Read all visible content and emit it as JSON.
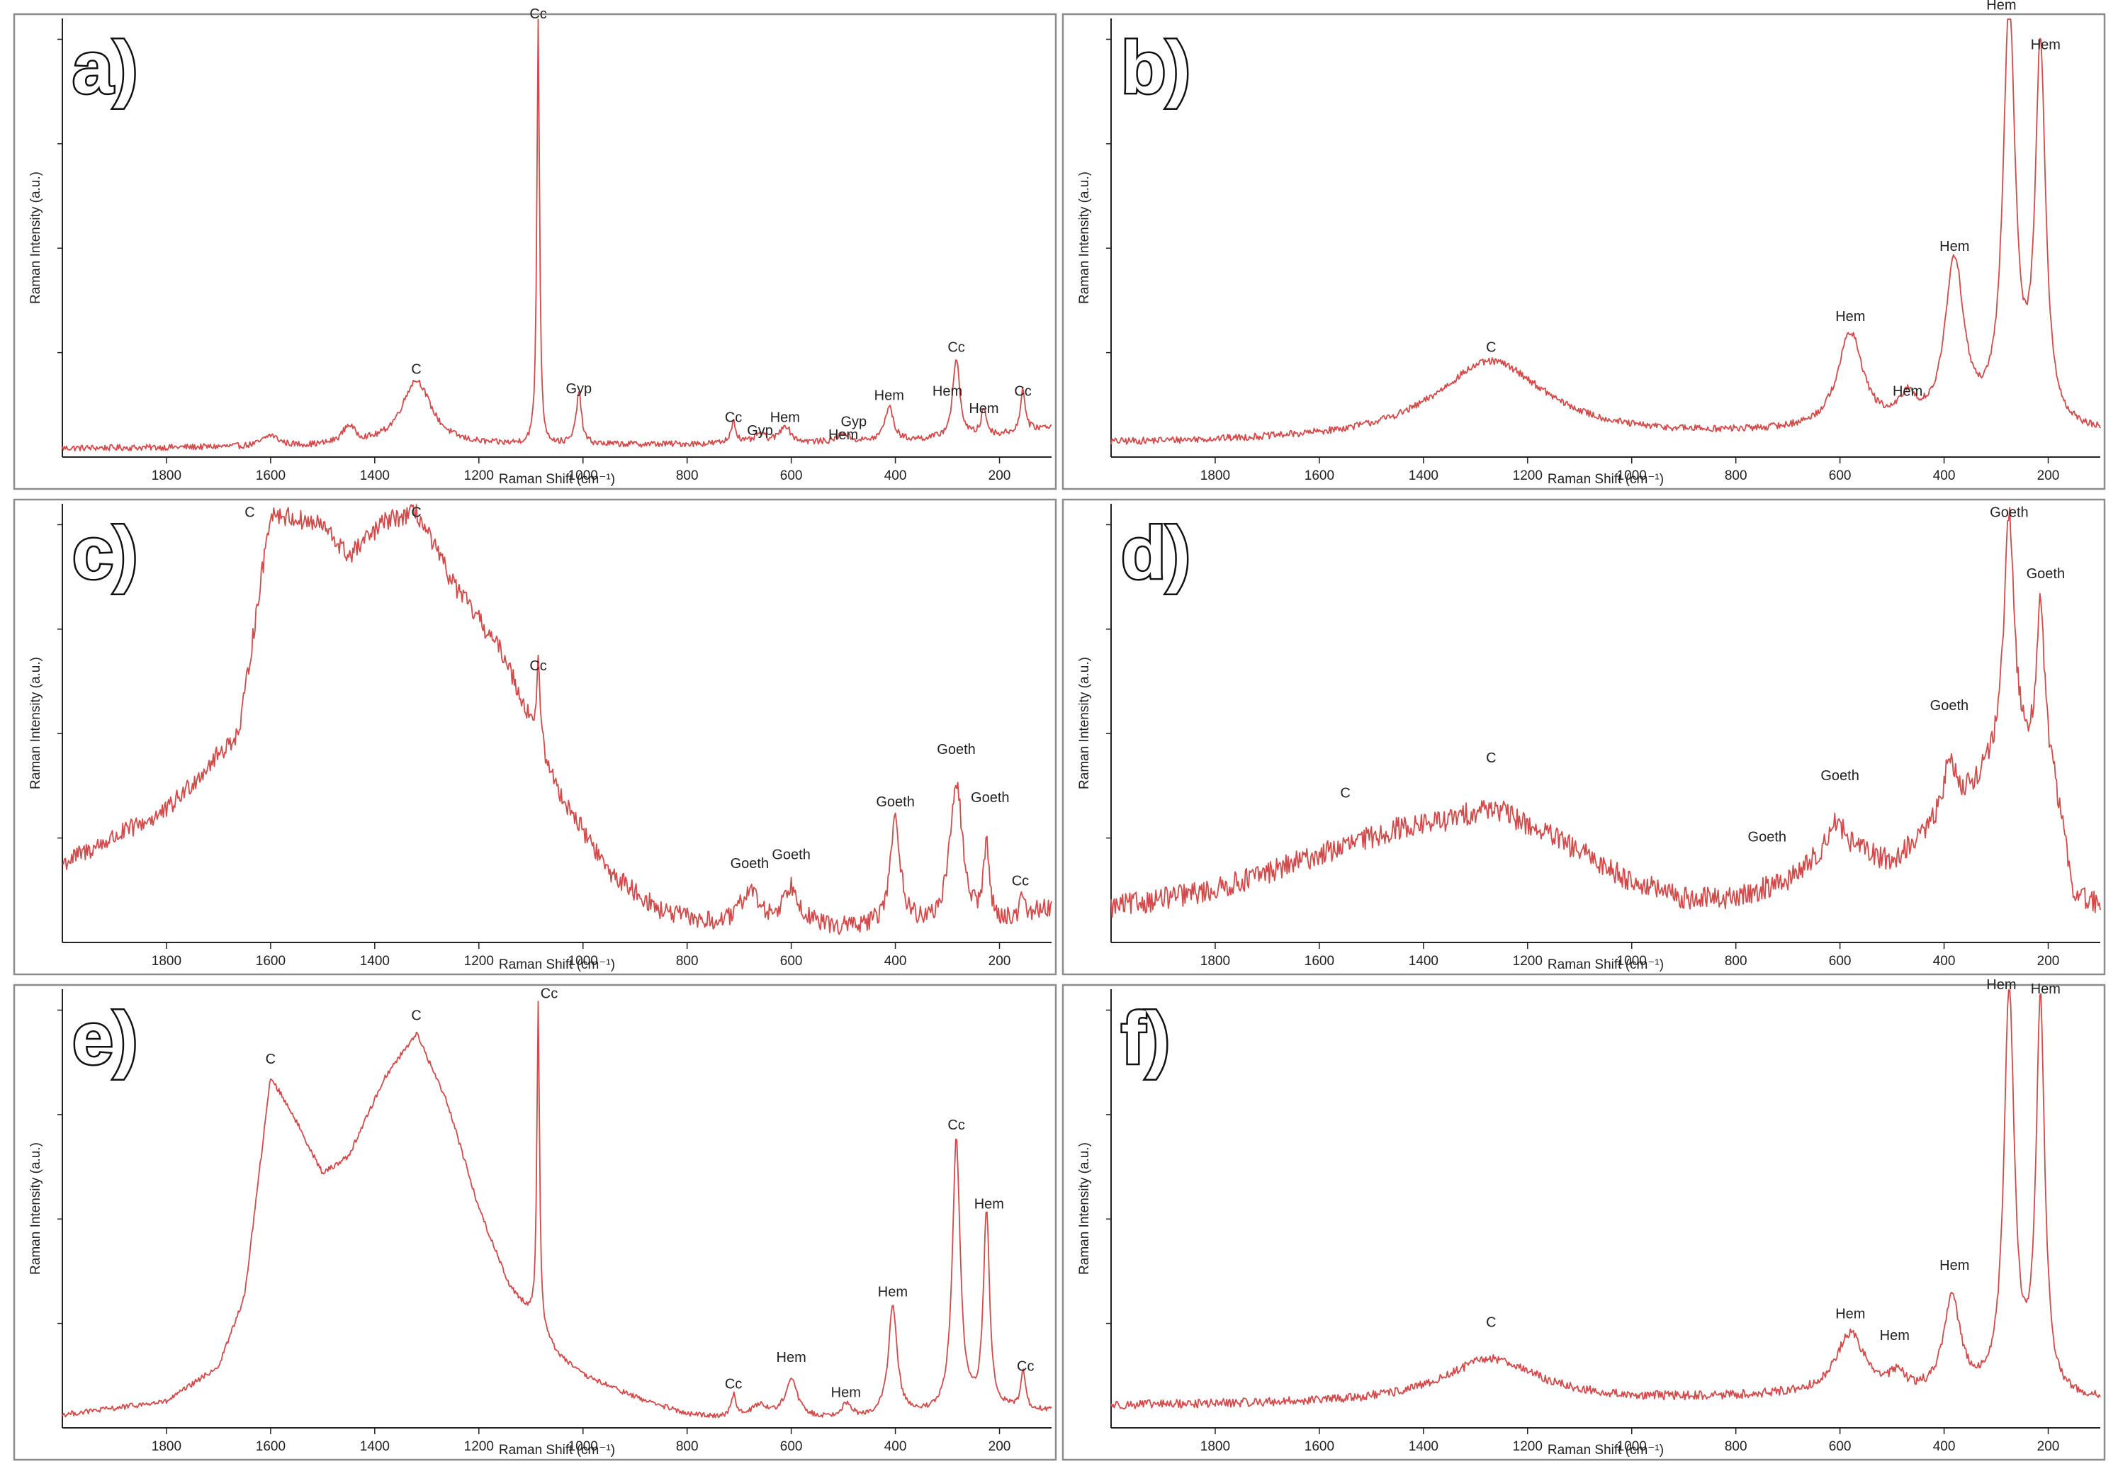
{
  "figure": {
    "spectrum_color": "#d24a4a",
    "axis_color": "#222222",
    "frame_color": "#8c8c8c"
  },
  "chart_data": [
    {
      "type": "line",
      "panel_label": "a)",
      "xlabel": "Raman Shift (cm⁻¹)",
      "ylabel": "Raman Intensity (a.u.)",
      "xlim": [
        2000,
        100
      ],
      "x_reversed": true,
      "ylim": [
        0,
        100
      ],
      "xticks": [
        1800,
        1600,
        1400,
        1200,
        1000,
        800,
        600,
        400,
        200
      ],
      "noise": 0.7,
      "baseline": [
        [
          2000,
          2
        ],
        [
          1200,
          2.5
        ],
        [
          700,
          3
        ],
        [
          400,
          3.5
        ],
        [
          200,
          5
        ],
        [
          100,
          7
        ]
      ],
      "peaks": [
        {
          "x": 1600,
          "h": 2.5,
          "w": 18
        },
        {
          "x": 1450,
          "h": 4,
          "w": 15
        },
        {
          "x": 1320,
          "h": 15,
          "w": 35
        },
        {
          "x": 1086,
          "h": 98,
          "w": 3
        },
        {
          "x": 1008,
          "h": 12,
          "w": 6
        },
        {
          "x": 711,
          "h": 5,
          "w": 6
        },
        {
          "x": 660,
          "h": 2,
          "w": 12
        },
        {
          "x": 612,
          "h": 4,
          "w": 12
        },
        {
          "x": 500,
          "h": 2,
          "w": 12
        },
        {
          "x": 412,
          "h": 8,
          "w": 10
        },
        {
          "x": 283,
          "h": 18,
          "w": 8
        },
        {
          "x": 230,
          "h": 6,
          "w": 6
        },
        {
          "x": 155,
          "h": 10,
          "w": 5
        }
      ],
      "annotations": [
        {
          "text": "Cc",
          "x": 1086,
          "y": 100
        },
        {
          "text": "C",
          "x": 1320,
          "y": 19
        },
        {
          "text": "Gyp",
          "x": 1008,
          "y": 14.5
        },
        {
          "text": "Cc",
          "x": 711,
          "y": 8
        },
        {
          "text": "Gyp",
          "x": 660,
          "y": 5
        },
        {
          "text": "Hem",
          "x": 612,
          "y": 8
        },
        {
          "text": "Hem",
          "x": 500,
          "y": 4
        },
        {
          "text": "Gyp",
          "x": 480,
          "y": 7
        },
        {
          "text": "Hem",
          "x": 412,
          "y": 13
        },
        {
          "text": "Hem",
          "x": 300,
          "y": 14
        },
        {
          "text": "Cc",
          "x": 283,
          "y": 24
        },
        {
          "text": "Hem",
          "x": 230,
          "y": 10
        },
        {
          "text": "Cc",
          "x": 155,
          "y": 14
        }
      ]
    },
    {
      "type": "line",
      "panel_label": "b)",
      "xlabel": "Raman Shift (cm⁻¹)",
      "ylabel": "Raman Intensity (a.u.)",
      "xlim": [
        2000,
        100
      ],
      "x_reversed": true,
      "ylim": [
        0,
        100
      ],
      "xticks": [
        1800,
        1600,
        1400,
        1200,
        1000,
        800,
        600,
        400,
        200
      ],
      "noise": 0.8,
      "baseline": [
        [
          2000,
          3
        ],
        [
          1000,
          4
        ],
        [
          700,
          5
        ],
        [
          100,
          5
        ]
      ],
      "peaks": [
        {
          "x": 1270,
          "h": 18,
          "w": 130
        },
        {
          "x": 580,
          "h": 22,
          "w": 30
        },
        {
          "x": 470,
          "h": 6,
          "w": 20
        },
        {
          "x": 380,
          "h": 38,
          "w": 22
        },
        {
          "x": 275,
          "h": 95,
          "w": 14
        },
        {
          "x": 215,
          "h": 85,
          "w": 12
        }
      ],
      "annotations": [
        {
          "text": "C",
          "x": 1270,
          "y": 24
        },
        {
          "text": "Hem",
          "x": 580,
          "y": 31
        },
        {
          "text": "Hem",
          "x": 470,
          "y": 14
        },
        {
          "text": "Hem",
          "x": 380,
          "y": 47
        },
        {
          "text": "Hem",
          "x": 290,
          "y": 102
        },
        {
          "text": "Hem",
          "x": 205,
          "y": 93
        }
      ]
    },
    {
      "type": "line",
      "panel_label": "c)",
      "xlabel": "Raman Shift (cm⁻¹)",
      "ylabel": "Raman Intensity (a.u.)",
      "xlim": [
        2000,
        100
      ],
      "x_reversed": true,
      "ylim": [
        0,
        100
      ],
      "xticks": [
        1800,
        1600,
        1400,
        1200,
        1000,
        800,
        600,
        400,
        200
      ],
      "noise": 2.2,
      "baseline": [
        [
          2000,
          18
        ],
        [
          1800,
          30
        ],
        [
          1660,
          48
        ],
        [
          1600,
          98
        ],
        [
          1500,
          95
        ],
        [
          1450,
          88
        ],
        [
          1380,
          96
        ],
        [
          1320,
          98
        ],
        [
          1250,
          82
        ],
        [
          1150,
          65
        ],
        [
          1050,
          35
        ],
        [
          950,
          16
        ],
        [
          850,
          7
        ],
        [
          750,
          4
        ],
        [
          500,
          3
        ],
        [
          200,
          4
        ],
        [
          100,
          8
        ]
      ],
      "peaks": [
        {
          "x": 1086,
          "h": 18,
          "w": 4
        },
        {
          "x": 680,
          "h": 8,
          "w": 20
        },
        {
          "x": 600,
          "h": 9,
          "w": 20
        },
        {
          "x": 400,
          "h": 24,
          "w": 12
        },
        {
          "x": 283,
          "h": 33,
          "w": 14
        },
        {
          "x": 225,
          "h": 17,
          "w": 7
        },
        {
          "x": 155,
          "h": 5,
          "w": 5
        }
      ],
      "annotations": [
        {
          "text": "C",
          "x": 1640,
          "y": 97
        },
        {
          "text": "C",
          "x": 1320,
          "y": 97
        },
        {
          "text": "Cc",
          "x": 1086,
          "y": 62
        },
        {
          "text": "Goeth",
          "x": 680,
          "y": 17
        },
        {
          "text": "Goeth",
          "x": 600,
          "y": 19
        },
        {
          "text": "Goeth",
          "x": 400,
          "y": 31
        },
        {
          "text": "Goeth",
          "x": 283,
          "y": 43
        },
        {
          "text": "Goeth",
          "x": 218,
          "y": 32
        },
        {
          "text": "Cc",
          "x": 160,
          "y": 13
        }
      ]
    },
    {
      "type": "line",
      "panel_label": "d)",
      "xlabel": "Raman Shift (cm⁻¹)",
      "ylabel": "Raman Intensity (a.u.)",
      "xlim": [
        2000,
        100
      ],
      "x_reversed": true,
      "ylim": [
        0,
        100
      ],
      "xticks": [
        1800,
        1600,
        1400,
        1200,
        1000,
        800,
        600,
        400,
        200
      ],
      "noise": 2.6,
      "baseline": [
        [
          2000,
          8
        ],
        [
          1800,
          12
        ],
        [
          1600,
          20
        ],
        [
          1450,
          26
        ],
        [
          1350,
          28
        ],
        [
          1270,
          31
        ],
        [
          1150,
          24
        ],
        [
          1000,
          14
        ],
        [
          900,
          10
        ],
        [
          800,
          10
        ],
        [
          700,
          14
        ],
        [
          600,
          22
        ],
        [
          500,
          18
        ],
        [
          400,
          28
        ],
        [
          340,
          35
        ],
        [
          300,
          40
        ],
        [
          250,
          40
        ],
        [
          190,
          35
        ],
        [
          150,
          10
        ],
        [
          100,
          8
        ]
      ],
      "peaks": [
        {
          "x": 610,
          "h": 6,
          "w": 20
        },
        {
          "x": 390,
          "h": 12,
          "w": 14
        },
        {
          "x": 275,
          "h": 56,
          "w": 12
        },
        {
          "x": 215,
          "h": 38,
          "w": 10
        }
      ],
      "annotations": [
        {
          "text": "C",
          "x": 1550,
          "y": 33
        },
        {
          "text": "C",
          "x": 1270,
          "y": 41
        },
        {
          "text": "Goeth",
          "x": 740,
          "y": 23
        },
        {
          "text": "Goeth",
          "x": 600,
          "y": 37
        },
        {
          "text": "Goeth",
          "x": 390,
          "y": 53
        },
        {
          "text": "Goeth",
          "x": 275,
          "y": 97
        },
        {
          "text": "Goeth",
          "x": 205,
          "y": 83
        }
      ]
    },
    {
      "type": "line",
      "panel_label": "e)",
      "xlabel": "Raman Shift (cm⁻¹)",
      "ylabel": "Raman Intensity (a.u.)",
      "xlim": [
        2000,
        100
      ],
      "x_reversed": true,
      "ylim": [
        0,
        100
      ],
      "xticks": [
        1800,
        1600,
        1400,
        1200,
        1000,
        800,
        600,
        400,
        200
      ],
      "noise": 0.6,
      "baseline": [
        [
          2000,
          3
        ],
        [
          1800,
          6
        ],
        [
          1700,
          14
        ],
        [
          1650,
          30
        ],
        [
          1600,
          80
        ],
        [
          1560,
          72
        ],
        [
          1500,
          58
        ],
        [
          1450,
          62
        ],
        [
          1380,
          80
        ],
        [
          1320,
          90
        ],
        [
          1260,
          74
        ],
        [
          1200,
          50
        ],
        [
          1140,
          32
        ],
        [
          1100,
          26
        ],
        [
          1050,
          17
        ],
        [
          1000,
          12
        ],
        [
          900,
          7
        ],
        [
          800,
          3
        ],
        [
          700,
          2
        ],
        [
          500,
          2
        ],
        [
          300,
          3
        ],
        [
          200,
          4
        ],
        [
          100,
          4
        ]
      ],
      "peaks": [
        {
          "x": 1086,
          "h": 74,
          "w": 3
        },
        {
          "x": 711,
          "h": 5,
          "w": 6
        },
        {
          "x": 660,
          "h": 3,
          "w": 20
        },
        {
          "x": 600,
          "h": 9,
          "w": 14
        },
        {
          "x": 495,
          "h": 3,
          "w": 12
        },
        {
          "x": 405,
          "h": 25,
          "w": 10
        },
        {
          "x": 283,
          "h": 62,
          "w": 9
        },
        {
          "x": 225,
          "h": 45,
          "w": 7
        },
        {
          "x": 155,
          "h": 9,
          "w": 5
        }
      ],
      "annotations": [
        {
          "text": "C",
          "x": 1600,
          "y": 83
        },
        {
          "text": "C",
          "x": 1320,
          "y": 93
        },
        {
          "text": "Cc",
          "x": 1065,
          "y": 98
        },
        {
          "text": "Cc",
          "x": 711,
          "y": 9
        },
        {
          "text": "Hem",
          "x": 600,
          "y": 15
        },
        {
          "text": "Hem",
          "x": 495,
          "y": 7
        },
        {
          "text": "Hem",
          "x": 405,
          "y": 30
        },
        {
          "text": "Cc",
          "x": 283,
          "y": 68
        },
        {
          "text": "Hem",
          "x": 220,
          "y": 50
        },
        {
          "text": "Cc",
          "x": 150,
          "y": 13
        }
      ]
    },
    {
      "type": "line",
      "panel_label": "f)",
      "xlabel": "Raman Shift (cm⁻¹)",
      "ylabel": "Raman Intensity (a.u.)",
      "xlim": [
        2000,
        100
      ],
      "x_reversed": true,
      "ylim": [
        0,
        100
      ],
      "xticks": [
        1800,
        1600,
        1400,
        1200,
        1000,
        800,
        600,
        400,
        200
      ],
      "noise": 1.0,
      "baseline": [
        [
          2000,
          5
        ],
        [
          1000,
          6
        ],
        [
          700,
          7
        ],
        [
          100,
          6
        ]
      ],
      "peaks": [
        {
          "x": 1270,
          "h": 10,
          "w": 110
        },
        {
          "x": 580,
          "h": 14,
          "w": 35
        },
        {
          "x": 490,
          "h": 4,
          "w": 18
        },
        {
          "x": 385,
          "h": 22,
          "w": 20
        },
        {
          "x": 275,
          "h": 92,
          "w": 12
        },
        {
          "x": 215,
          "h": 89,
          "w": 10
        }
      ],
      "annotations": [
        {
          "text": "C",
          "x": 1270,
          "y": 23
        },
        {
          "text": "Hem",
          "x": 580,
          "y": 25
        },
        {
          "text": "Hem",
          "x": 495,
          "y": 20
        },
        {
          "text": "Hem",
          "x": 380,
          "y": 36
        },
        {
          "text": "Hem",
          "x": 290,
          "y": 100
        },
        {
          "text": "Hem",
          "x": 205,
          "y": 99
        }
      ]
    }
  ]
}
